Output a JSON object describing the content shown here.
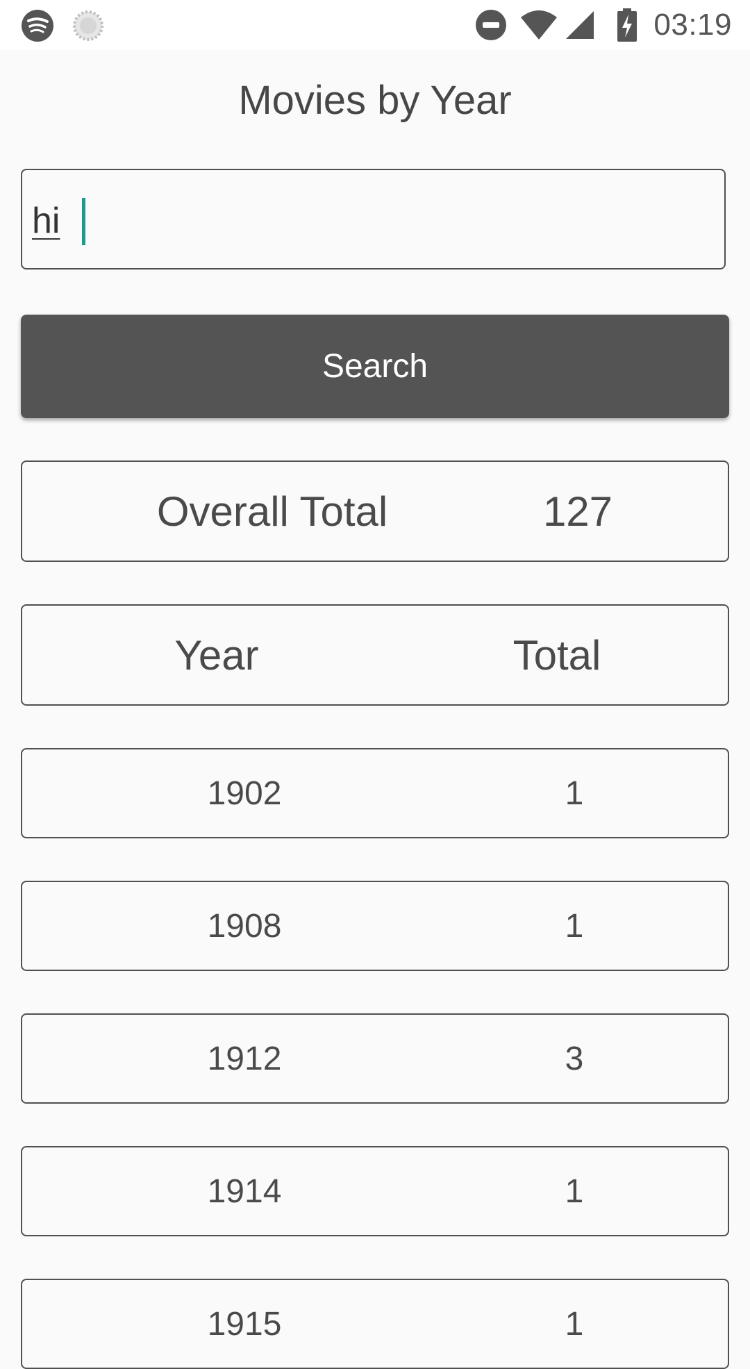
{
  "status_bar": {
    "time": "03:19",
    "icons": [
      "spotify-icon",
      "loading-icon",
      "do-not-disturb-icon",
      "wifi-icon",
      "signal-icon",
      "battery-charging-icon"
    ]
  },
  "app": {
    "title": "Movies by Year"
  },
  "search": {
    "value": "hi",
    "button_label": "Search"
  },
  "summary": {
    "label": "Overall Total",
    "value": "127"
  },
  "table": {
    "headers": [
      "Year",
      "Total"
    ],
    "rows": [
      {
        "year": "1902",
        "total": "1"
      },
      {
        "year": "1908",
        "total": "1"
      },
      {
        "year": "1912",
        "total": "3"
      },
      {
        "year": "1914",
        "total": "1"
      },
      {
        "year": "1915",
        "total": "1"
      }
    ]
  },
  "colors": {
    "caret": "#1a9c8c",
    "button_bg": "#545454",
    "border": "#505050",
    "background": "#fafafa"
  }
}
